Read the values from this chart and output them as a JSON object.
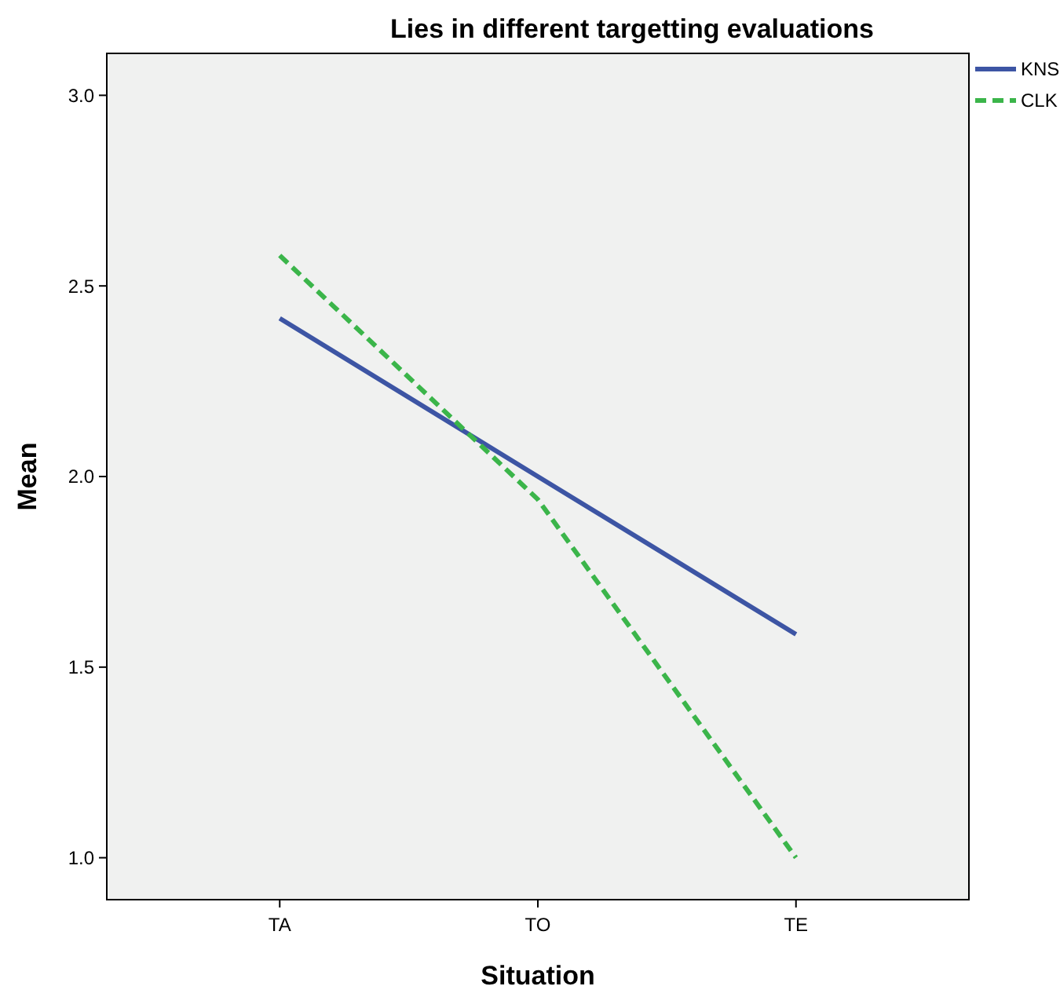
{
  "chart_data": {
    "type": "line",
    "title": "Lies in different targetting evaluations",
    "xlabel": "Situation",
    "ylabel": "Mean",
    "categories": [
      "TA",
      "TO",
      "TE"
    ],
    "series": [
      {
        "name": "KNS",
        "color": "#3d55a4",
        "values": [
          2.415,
          2.0,
          1.586
        ],
        "line_style": "solid"
      },
      {
        "name": "CLK",
        "color": "#3bb54a",
        "values": [
          2.58,
          1.94,
          1.0
        ],
        "line_style": "dashed"
      }
    ],
    "ylim": [
      0.89,
      3.11
    ],
    "yticks": [
      {
        "value": 1,
        "label": "1.0"
      },
      {
        "value": 1.5,
        "label": "1.5"
      },
      {
        "value": 2,
        "label": "2.0"
      },
      {
        "value": 2.5,
        "label": "2.5"
      },
      {
        "value": 3,
        "label": "3.0"
      }
    ],
    "grid": false,
    "legend": "top right",
    "marker": "none"
  }
}
